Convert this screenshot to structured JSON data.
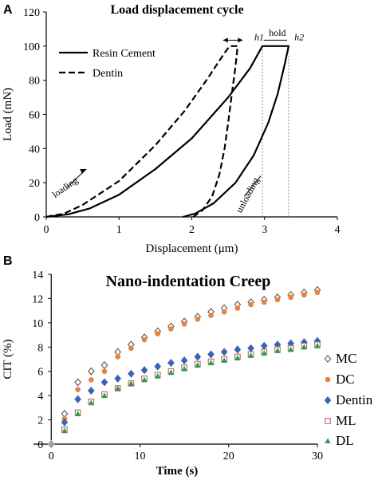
{
  "chart_data": [
    {
      "panel": "A",
      "type": "line",
      "title": "Load displacement cycle",
      "xlabel": "Displacement (μm)",
      "ylabel": "Load (mN)",
      "xlim": [
        0,
        4
      ],
      "ylim": [
        0,
        120
      ],
      "xticks": [
        "0",
        "1",
        "2",
        "3",
        "4"
      ],
      "yticks": [
        "0",
        "20",
        "40",
        "60",
        "80",
        "100",
        "120"
      ],
      "grid": false,
      "legend_position": "top-left",
      "series": [
        {
          "name": "Resin Cement",
          "style": "solid",
          "color": "#000000",
          "points": [
            [
              0,
              0
            ],
            [
              0.3,
              1.5
            ],
            [
              0.6,
              5
            ],
            [
              1.0,
              13
            ],
            [
              1.5,
              28
            ],
            [
              2.0,
              46
            ],
            [
              2.5,
              70
            ],
            [
              2.8,
              87
            ],
            [
              2.97,
              100
            ],
            [
              3.33,
              100
            ],
            [
              3.28,
              90
            ],
            [
              3.18,
              72
            ],
            [
              3.05,
              55
            ],
            [
              2.85,
              36
            ],
            [
              2.6,
              20
            ],
            [
              2.3,
              8
            ],
            [
              2.05,
              2
            ],
            [
              1.88,
              0
            ]
          ]
        },
        {
          "name": "Dentin",
          "style": "dashed",
          "color": "#000000",
          "points": [
            [
              0,
              0
            ],
            [
              0.25,
              2
            ],
            [
              0.5,
              7
            ],
            [
              1.0,
              21
            ],
            [
              1.5,
              42
            ],
            [
              1.9,
              62
            ],
            [
              2.2,
              80
            ],
            [
              2.45,
              96
            ],
            [
              2.52,
              100
            ],
            [
              2.63,
              100
            ],
            [
              2.6,
              88
            ],
            [
              2.55,
              72
            ],
            [
              2.5,
              55
            ],
            [
              2.45,
              40
            ],
            [
              2.38,
              25
            ],
            [
              2.28,
              12
            ],
            [
              2.15,
              4
            ],
            [
              2.02,
              0
            ]
          ]
        }
      ],
      "annotations": [
        {
          "text": "loading",
          "x": 0.25,
          "y": 16
        },
        {
          "text": "unloading",
          "x": 2.6,
          "y": 14
        },
        {
          "text": "h1",
          "x": 2.87,
          "y": 105
        },
        {
          "text": "hold",
          "x": 3.15,
          "y": 106
        },
        {
          "text": "h2",
          "x": 3.45,
          "y": 105
        }
      ],
      "reference_lines_x": [
        2.97,
        3.33
      ]
    },
    {
      "panel": "B",
      "type": "scatter",
      "title": "Nano-indentation Creep",
      "xlabel": "Time (s)",
      "ylabel": "CIT (%)",
      "xlim": [
        -2,
        30
      ],
      "ylim": [
        0,
        14
      ],
      "xticks": [
        "0",
        "10",
        "20",
        "30"
      ],
      "yticks": [
        "0",
        "2",
        "4",
        "6",
        "8",
        "10",
        "12",
        "14"
      ],
      "grid": false,
      "legend_position": "right",
      "series": [
        {
          "name": "MC",
          "marker": "diamond-open",
          "color": "#555555",
          "x": [
            0,
            1.5,
            3,
            4.5,
            6,
            7.5,
            9,
            10.5,
            12,
            13.5,
            15,
            16.5,
            18,
            19.5,
            21,
            22.5,
            24,
            25.5,
            27,
            28.5,
            30
          ],
          "y": [
            0,
            2.5,
            5.1,
            6.0,
            6.5,
            7.6,
            8.2,
            8.8,
            9.3,
            9.7,
            10.1,
            10.5,
            10.9,
            11.2,
            11.5,
            11.7,
            11.9,
            12.1,
            12.3,
            12.5,
            12.7
          ]
        },
        {
          "name": "DC",
          "marker": "circle",
          "color": "#e8833a",
          "x": [
            0,
            1.5,
            3,
            4.5,
            6,
            7.5,
            9,
            10.5,
            12,
            13.5,
            15,
            16.5,
            18,
            19.5,
            21,
            22.5,
            24,
            25.5,
            27,
            28.5,
            30
          ],
          "y": [
            0,
            2.1,
            4.5,
            5.3,
            6.0,
            7.2,
            7.9,
            8.6,
            9.1,
            9.5,
            9.9,
            10.3,
            10.6,
            10.9,
            11.2,
            11.5,
            11.7,
            11.9,
            12.1,
            12.3,
            12.5
          ]
        },
        {
          "name": "Dentin",
          "marker": "diamond",
          "color": "#3a64b4",
          "x": [
            0,
            1.5,
            3,
            4.5,
            6,
            7.5,
            9,
            10.5,
            12,
            13.5,
            15,
            16.5,
            18,
            19.5,
            21,
            22.5,
            24,
            25.5,
            27,
            28.5,
            30
          ],
          "y": [
            0,
            1.8,
            3.7,
            4.4,
            5.1,
            5.4,
            5.8,
            6.1,
            6.4,
            6.7,
            6.9,
            7.2,
            7.4,
            7.6,
            7.8,
            7.9,
            8.1,
            8.2,
            8.3,
            8.4,
            8.5
          ]
        },
        {
          "name": "ML",
          "marker": "square-open",
          "color": "#c86464",
          "x": [
            0,
            1.5,
            3,
            4.5,
            6,
            7.5,
            9,
            10.5,
            12,
            13.5,
            15,
            16.5,
            18,
            19.5,
            21,
            22.5,
            24,
            25.5,
            27,
            28.5,
            30
          ],
          "y": [
            0,
            1.2,
            2.6,
            3.5,
            4.1,
            4.6,
            5.0,
            5.4,
            5.7,
            6.0,
            6.3,
            6.6,
            6.8,
            7.0,
            7.2,
            7.4,
            7.6,
            7.8,
            7.9,
            8.1,
            8.2
          ]
        },
        {
          "name": "DL",
          "marker": "triangle",
          "color": "#22a050",
          "x": [
            0,
            1.5,
            3,
            4.5,
            6,
            7.5,
            9,
            10.5,
            12,
            13.5,
            15,
            16.5,
            18,
            19.5,
            21,
            22.5,
            24,
            25.5,
            27,
            28.5,
            30
          ],
          "y": [
            0,
            1.1,
            2.5,
            3.4,
            4.0,
            4.6,
            5.0,
            5.3,
            5.6,
            5.9,
            6.2,
            6.5,
            6.7,
            6.9,
            7.1,
            7.3,
            7.5,
            7.7,
            7.8,
            8.0,
            8.1
          ]
        }
      ]
    }
  ]
}
